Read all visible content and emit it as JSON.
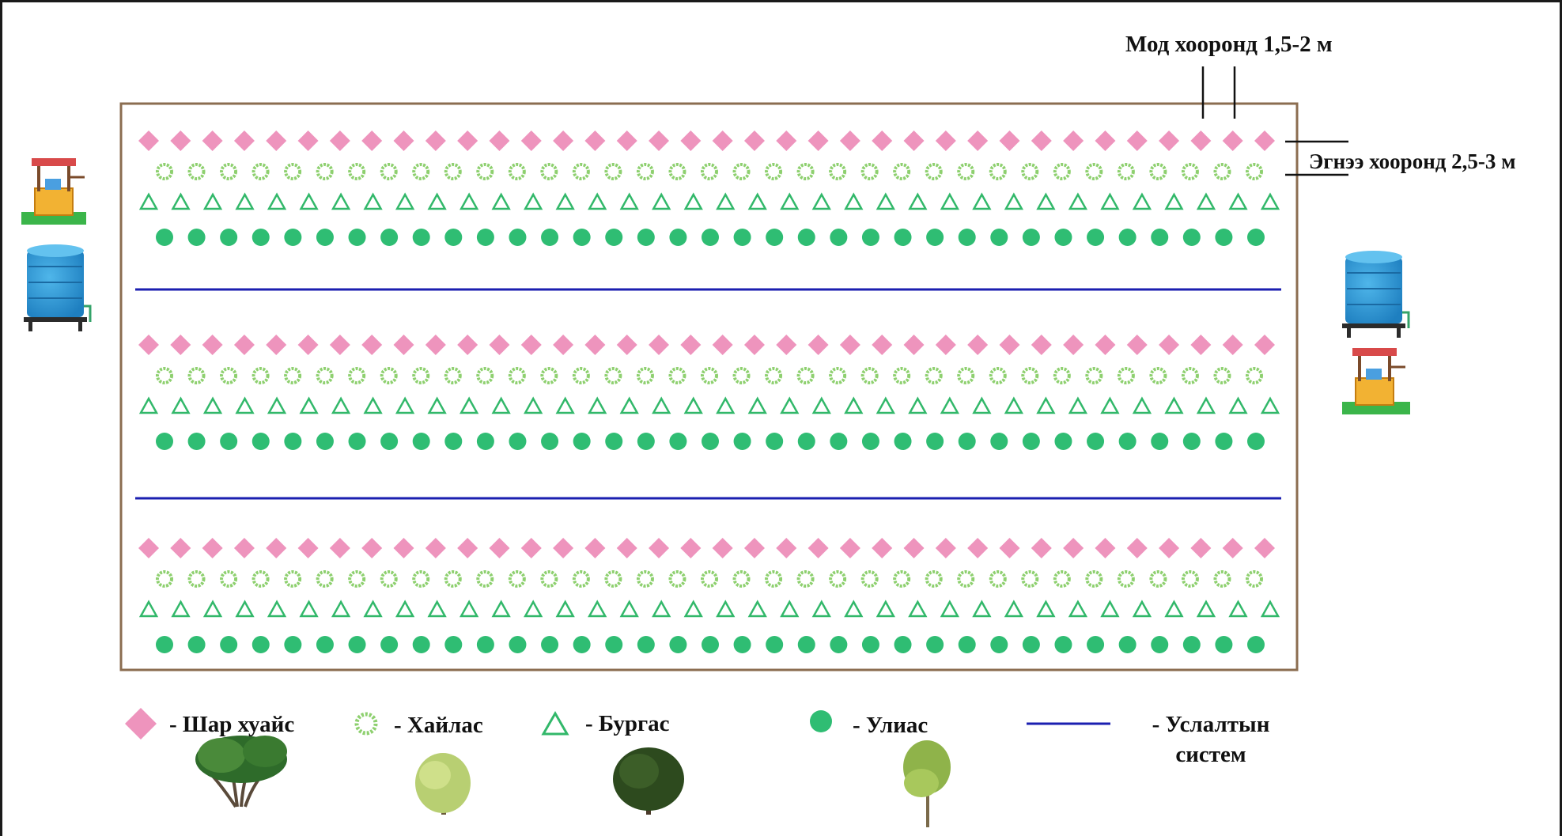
{
  "annotations": {
    "tree_spacing": "Мод хооронд 1,5-2 м",
    "row_spacing": "Эгнээ хооронд 2,5-3 м"
  },
  "legend": [
    {
      "symbol": "diamond",
      "text": "- Шар хуайс",
      "color": "#ee94bd"
    },
    {
      "symbol": "ring",
      "text": "- Хайлас",
      "color": "#8ed06f"
    },
    {
      "symbol": "triangle",
      "text": "- Бургас",
      "color": "#32b86a"
    },
    {
      "symbol": "dot",
      "text": "- Улиас",
      "color": "#2fbd73"
    },
    {
      "symbol": "line",
      "text": "- Услалтын систем",
      "color": "#1b1fb0"
    }
  ],
  "rows": {
    "order": [
      "diamond",
      "ring",
      "triangle",
      "dot"
    ],
    "per_row": 36,
    "blocks": 3
  },
  "colors": {
    "field_border": "#8b6d50",
    "irrigation": "#1b1fb0",
    "diamond": "#ee94bd",
    "ring": "#8ed06f",
    "triangle": "#32b86a",
    "dot": "#2fbd73"
  },
  "icons": [
    "well-icon",
    "water-tank-icon",
    "tree-shar-khuais-icon",
    "tree-khailas-icon",
    "tree-burgas-icon",
    "tree-uliaas-icon"
  ]
}
